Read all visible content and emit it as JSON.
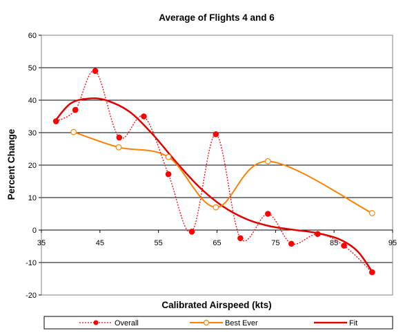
{
  "chart_data": {
    "type": "line",
    "title": "Average of Flights 4 and 6",
    "xlabel": "Calibrated Airspeed (kts)",
    "ylabel": "Percent Change",
    "xlim": [
      35,
      95
    ],
    "ylim": [
      -20,
      60
    ],
    "x_ticks": [
      35,
      45,
      55,
      65,
      75,
      85,
      95
    ],
    "y_ticks": [
      -20,
      -10,
      0,
      10,
      20,
      30,
      40,
      50,
      60
    ],
    "grid": "horizontal",
    "legend_position": "bottom",
    "series": [
      {
        "name": "Overall",
        "style": "dotted-markers-filled",
        "color": "#ff0000",
        "points": [
          [
            37.5,
            33.5
          ],
          [
            40.8,
            37
          ],
          [
            44.2,
            49
          ],
          [
            48.3,
            28.5
          ],
          [
            52.5,
            35
          ],
          [
            56.7,
            17.2
          ],
          [
            60.7,
            -0.5
          ],
          [
            64.8,
            29.5
          ],
          [
            69,
            -2.5
          ],
          [
            73.7,
            5
          ],
          [
            77.7,
            -4.2
          ],
          [
            82.2,
            -1.2
          ],
          [
            86.7,
            -4.8
          ],
          [
            91.5,
            -13
          ]
        ]
      },
      {
        "name": "Best Ever",
        "style": "solid-markers-open",
        "color": "#ff8000",
        "points": [
          [
            40.5,
            30.2
          ],
          [
            48.2,
            25.5
          ],
          [
            56.7,
            22.5
          ],
          [
            64.8,
            7
          ],
          [
            73.7,
            21.2
          ],
          [
            91.5,
            5.2
          ]
        ]
      },
      {
        "name": "Fit",
        "style": "solid-thick",
        "color": "#e00000",
        "points": [
          [
            37.5,
            34
          ],
          [
            40,
            39
          ],
          [
            43,
            40.5
          ],
          [
            46,
            40
          ],
          [
            50,
            36.5
          ],
          [
            54,
            29.5
          ],
          [
            58,
            21
          ],
          [
            62,
            13.2
          ],
          [
            66,
            7.3
          ],
          [
            70,
            3.4
          ],
          [
            74,
            1.2
          ],
          [
            78,
            0.1
          ],
          [
            82,
            -0.9
          ],
          [
            86,
            -2.9
          ],
          [
            89,
            -6.5
          ],
          [
            91.5,
            -12.8
          ]
        ]
      }
    ]
  }
}
